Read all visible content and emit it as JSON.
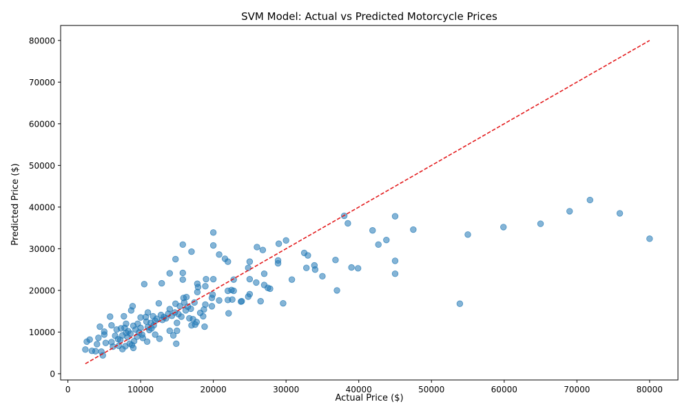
{
  "chart_data": {
    "type": "scatter",
    "title": "SVM Model: Actual vs Predicted Motorcycle Prices",
    "xlabel": "Actual Price ($)",
    "ylabel": "Predicted Price ($)",
    "xlim": [
      -1000,
      83900
    ],
    "ylim": [
      -1500,
      83600
    ],
    "xticks": [
      0,
      10000,
      20000,
      30000,
      40000,
      50000,
      60000,
      70000,
      80000
    ],
    "yticks": [
      0,
      10000,
      20000,
      30000,
      40000,
      50000,
      60000,
      70000,
      80000
    ],
    "xtick_labels": [
      "0",
      "10000",
      "20000",
      "30000",
      "40000",
      "50000",
      "60000",
      "70000",
      "80000"
    ],
    "ytick_labels": [
      "0",
      "10000",
      "20000",
      "30000",
      "40000",
      "50000",
      "60000",
      "70000",
      "80000"
    ],
    "grid": false,
    "point_color": "#1f77b4",
    "line_color": "#e31a1c",
    "reference_line": {
      "x": [
        2400,
        80000
      ],
      "y": [
        2400,
        80000
      ],
      "style": "dashed"
    },
    "points": [
      [
        2400,
        5800
      ],
      [
        2600,
        7700
      ],
      [
        3000,
        8200
      ],
      [
        3300,
        5500
      ],
      [
        3800,
        5400
      ],
      [
        4000,
        7100
      ],
      [
        4200,
        8600
      ],
      [
        4400,
        11300
      ],
      [
        4600,
        5300
      ],
      [
        4800,
        4400
      ],
      [
        5000,
        9400
      ],
      [
        5000,
        10100
      ],
      [
        5200,
        7400
      ],
      [
        5800,
        13700
      ],
      [
        6000,
        11600
      ],
      [
        6000,
        7600
      ],
      [
        6200,
        6500
      ],
      [
        6500,
        9100
      ],
      [
        6700,
        10600
      ],
      [
        6900,
        8300
      ],
      [
        7000,
        6700
      ],
      [
        7200,
        8100
      ],
      [
        7300,
        10900
      ],
      [
        7500,
        9200
      ],
      [
        7500,
        5900
      ],
      [
        7700,
        13800
      ],
      [
        7800,
        11000
      ],
      [
        7900,
        6600
      ],
      [
        8000,
        9800
      ],
      [
        8000,
        12000
      ],
      [
        8200,
        8800
      ],
      [
        8300,
        10200
      ],
      [
        8500,
        7200
      ],
      [
        8600,
        9600
      ],
      [
        8700,
        15200
      ],
      [
        8800,
        6900
      ],
      [
        8900,
        16200
      ],
      [
        9000,
        6200
      ],
      [
        9000,
        11500
      ],
      [
        9100,
        7800
      ],
      [
        9300,
        10600
      ],
      [
        9500,
        8900
      ],
      [
        9600,
        12000
      ],
      [
        9800,
        9900
      ],
      [
        10000,
        13500
      ],
      [
        10000,
        11000
      ],
      [
        10200,
        9400
      ],
      [
        10300,
        8600
      ],
      [
        10500,
        21500
      ],
      [
        10700,
        13600
      ],
      [
        10800,
        12500
      ],
      [
        10900,
        7700
      ],
      [
        11000,
        14700
      ],
      [
        11000,
        11200
      ],
      [
        11200,
        10500
      ],
      [
        11400,
        12200
      ],
      [
        11500,
        10900
      ],
      [
        11700,
        13800
      ],
      [
        11800,
        11600
      ],
      [
        12000,
        9400
      ],
      [
        12000,
        12700
      ],
      [
        12200,
        13200
      ],
      [
        12500,
        16900
      ],
      [
        12600,
        8400
      ],
      [
        12800,
        14100
      ],
      [
        12900,
        21700
      ],
      [
        13000,
        12900
      ],
      [
        13200,
        13600
      ],
      [
        13500,
        13300
      ],
      [
        13800,
        14400
      ],
      [
        14000,
        24100
      ],
      [
        14000,
        10300
      ],
      [
        14000,
        15500
      ],
      [
        14300,
        13900
      ],
      [
        14500,
        9200
      ],
      [
        14700,
        14700
      ],
      [
        14800,
        16800
      ],
      [
        14800,
        27500
      ],
      [
        14900,
        7200
      ],
      [
        15000,
        12200
      ],
      [
        15000,
        10300
      ],
      [
        15200,
        14300
      ],
      [
        15400,
        16200
      ],
      [
        15600,
        13700
      ],
      [
        15800,
        31000
      ],
      [
        15800,
        24200
      ],
      [
        15800,
        22600
      ],
      [
        15900,
        18200
      ],
      [
        16000,
        17100
      ],
      [
        16200,
        15200
      ],
      [
        16300,
        18400
      ],
      [
        16500,
        16100
      ],
      [
        16700,
        13300
      ],
      [
        16900,
        15600
      ],
      [
        17000,
        11600
      ],
      [
        17000,
        29300
      ],
      [
        17200,
        13100
      ],
      [
        17400,
        17100
      ],
      [
        17500,
        11800
      ],
      [
        17700,
        12400
      ],
      [
        17800,
        19600
      ],
      [
        17800,
        21600
      ],
      [
        17900,
        20800
      ],
      [
        18200,
        14600
      ],
      [
        18600,
        13800
      ],
      [
        18700,
        15400
      ],
      [
        18800,
        11300
      ],
      [
        18900,
        16600
      ],
      [
        18900,
        21000
      ],
      [
        19000,
        22700
      ],
      [
        19800,
        16200
      ],
      [
        19800,
        18200
      ],
      [
        19900,
        19000
      ],
      [
        20000,
        22700
      ],
      [
        20000,
        30800
      ],
      [
        20000,
        33900
      ],
      [
        20800,
        17600
      ],
      [
        20800,
        28600
      ],
      [
        21600,
        27600
      ],
      [
        22000,
        26900
      ],
      [
        22000,
        19900
      ],
      [
        22000,
        17700
      ],
      [
        22100,
        14500
      ],
      [
        22500,
        20100
      ],
      [
        22600,
        17800
      ],
      [
        22800,
        22600
      ],
      [
        22800,
        19900
      ],
      [
        23800,
        17300
      ],
      [
        23900,
        17400
      ],
      [
        24800,
        18500
      ],
      [
        24800,
        25400
      ],
      [
        25000,
        22700
      ],
      [
        25000,
        26900
      ],
      [
        25000,
        19100
      ],
      [
        25900,
        21900
      ],
      [
        26000,
        30400
      ],
      [
        26500,
        17400
      ],
      [
        26800,
        29700
      ],
      [
        27000,
        24000
      ],
      [
        27000,
        21300
      ],
      [
        27500,
        20600
      ],
      [
        27800,
        20400
      ],
      [
        28900,
        27200
      ],
      [
        28900,
        26500
      ],
      [
        29000,
        31200
      ],
      [
        29600,
        16900
      ],
      [
        30000,
        32000
      ],
      [
        30800,
        22600
      ],
      [
        32500,
        29000
      ],
      [
        32800,
        25400
      ],
      [
        33000,
        28400
      ],
      [
        33900,
        26000
      ],
      [
        34000,
        25000
      ],
      [
        35000,
        23400
      ],
      [
        36800,
        27300
      ],
      [
        37000,
        20000
      ],
      [
        38000,
        37900
      ],
      [
        38500,
        36100
      ],
      [
        39000,
        25500
      ],
      [
        39900,
        25300
      ],
      [
        41900,
        34400
      ],
      [
        42700,
        31000
      ],
      [
        43800,
        32100
      ],
      [
        45000,
        37800
      ],
      [
        45000,
        27100
      ],
      [
        45000,
        24000
      ],
      [
        47500,
        34600
      ],
      [
        53900,
        16800
      ],
      [
        55000,
        33400
      ],
      [
        59900,
        35200
      ],
      [
        65000,
        36000
      ],
      [
        69000,
        39000
      ],
      [
        71800,
        41700
      ],
      [
        75900,
        38500
      ],
      [
        80000,
        32400
      ]
    ]
  }
}
